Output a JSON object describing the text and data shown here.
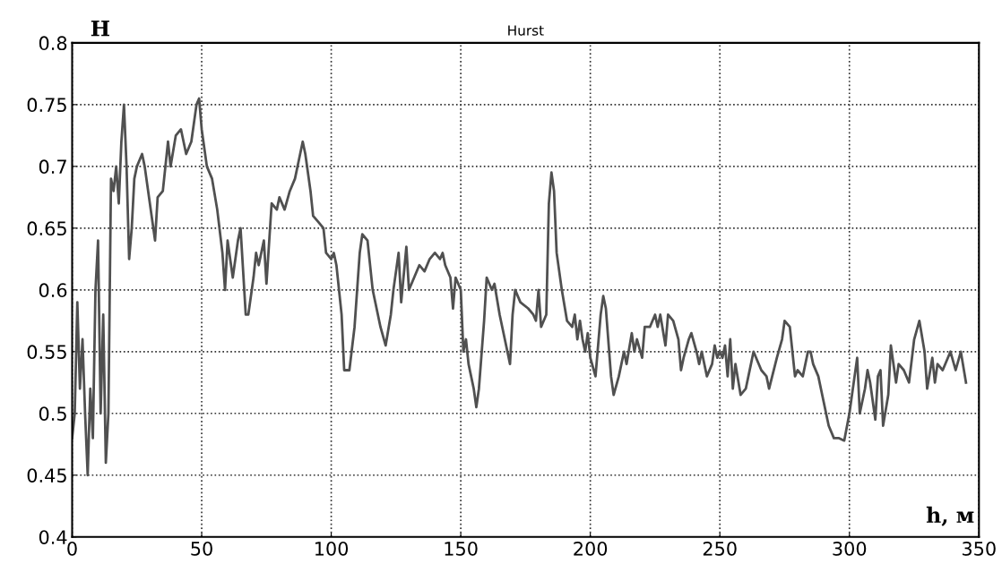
{
  "chart_data": {
    "type": "line",
    "title": "Hurst",
    "xlabel": "h, м",
    "ylabel": "H",
    "xlim": [
      0,
      350
    ],
    "ylim": [
      0.4,
      0.8
    ],
    "xticks": [
      0,
      50,
      100,
      150,
      200,
      250,
      300,
      350
    ],
    "yticks": [
      0.4,
      0.45,
      0.5,
      0.55,
      0.6,
      0.65,
      0.7,
      0.75,
      0.8
    ],
    "grid": true,
    "line_style": "solid",
    "marker": "none",
    "series": [
      {
        "color": "#505050",
        "x": [
          0,
          1,
          2,
          3,
          4,
          5,
          6,
          7,
          8,
          9,
          10,
          11,
          12,
          13,
          14,
          15,
          16,
          17,
          18,
          19,
          20,
          21,
          22,
          23,
          24,
          25,
          27,
          28,
          30,
          32,
          33,
          35,
          37,
          38,
          40,
          42,
          44,
          46,
          48,
          49,
          50,
          52,
          54,
          56,
          58,
          59,
          60,
          61,
          62,
          64,
          65,
          67,
          68,
          70,
          71,
          72,
          74,
          75,
          77,
          79,
          80,
          82,
          84,
          86,
          88,
          89,
          90,
          92,
          93,
          95,
          97,
          98,
          100,
          101,
          102,
          104,
          105,
          107,
          109,
          111,
          112,
          114,
          116,
          119,
          121,
          123,
          124,
          126,
          127,
          129,
          130,
          132,
          134,
          136,
          138,
          140,
          142,
          143,
          144,
          146,
          147,
          148,
          150,
          151,
          152,
          153,
          155,
          156,
          157,
          159,
          160,
          162,
          163,
          165,
          168,
          169,
          170,
          171,
          173,
          176,
          178,
          179,
          180,
          181,
          183,
          184,
          185,
          186,
          187,
          189,
          191,
          193,
          194,
          195,
          196,
          197,
          198,
          199,
          200,
          202,
          204,
          205,
          206,
          208,
          209,
          211,
          213,
          214,
          216,
          217,
          218,
          220,
          221,
          223,
          225,
          226,
          227,
          229,
          230,
          232,
          234,
          235,
          236,
          238,
          239,
          241,
          242,
          243,
          245,
          247,
          248,
          249,
          250,
          251,
          252,
          253,
          254,
          255,
          256,
          258,
          260,
          262,
          263,
          264,
          266,
          268,
          269,
          272,
          274,
          275,
          277,
          279,
          280,
          282,
          284,
          285,
          286,
          288,
          290,
          292,
          294,
          296,
          298,
          300,
          302,
          303,
          304,
          306,
          307,
          308,
          310,
          311,
          312,
          313,
          315,
          316,
          318,
          319,
          321,
          323,
          325,
          327,
          329,
          330,
          332,
          333,
          334,
          336,
          338,
          339,
          341,
          343,
          345
        ],
        "values": [
          0.48,
          0.5,
          0.59,
          0.52,
          0.56,
          0.5,
          0.45,
          0.52,
          0.48,
          0.6,
          0.64,
          0.5,
          0.58,
          0.46,
          0.5,
          0.69,
          0.68,
          0.7,
          0.67,
          0.72,
          0.75,
          0.7,
          0.625,
          0.65,
          0.69,
          0.7,
          0.71,
          0.7,
          0.67,
          0.64,
          0.675,
          0.68,
          0.72,
          0.7,
          0.725,
          0.73,
          0.71,
          0.72,
          0.75,
          0.755,
          0.73,
          0.7,
          0.69,
          0.665,
          0.63,
          0.6,
          0.64,
          0.625,
          0.61,
          0.64,
          0.65,
          0.58,
          0.58,
          0.61,
          0.63,
          0.62,
          0.64,
          0.605,
          0.67,
          0.665,
          0.675,
          0.665,
          0.68,
          0.69,
          0.71,
          0.72,
          0.71,
          0.68,
          0.66,
          0.655,
          0.65,
          0.63,
          0.625,
          0.63,
          0.62,
          0.58,
          0.535,
          0.535,
          0.57,
          0.63,
          0.645,
          0.64,
          0.6,
          0.57,
          0.555,
          0.58,
          0.6,
          0.63,
          0.59,
          0.635,
          0.6,
          0.61,
          0.62,
          0.615,
          0.625,
          0.63,
          0.625,
          0.63,
          0.62,
          0.61,
          0.585,
          0.61,
          0.6,
          0.55,
          0.56,
          0.54,
          0.52,
          0.505,
          0.52,
          0.575,
          0.61,
          0.6,
          0.605,
          0.58,
          0.55,
          0.54,
          0.58,
          0.6,
          0.59,
          0.585,
          0.58,
          0.575,
          0.6,
          0.57,
          0.58,
          0.67,
          0.695,
          0.68,
          0.63,
          0.6,
          0.575,
          0.57,
          0.58,
          0.56,
          0.575,
          0.56,
          0.55,
          0.565,
          0.545,
          0.53,
          0.58,
          0.595,
          0.585,
          0.53,
          0.515,
          0.53,
          0.55,
          0.54,
          0.565,
          0.55,
          0.56,
          0.545,
          0.57,
          0.57,
          0.58,
          0.57,
          0.58,
          0.555,
          0.58,
          0.575,
          0.56,
          0.535,
          0.545,
          0.56,
          0.565,
          0.55,
          0.54,
          0.55,
          0.53,
          0.54,
          0.555,
          0.545,
          0.55,
          0.545,
          0.555,
          0.53,
          0.56,
          0.52,
          0.54,
          0.515,
          0.52,
          0.54,
          0.55,
          0.545,
          0.535,
          0.53,
          0.52,
          0.545,
          0.56,
          0.575,
          0.57,
          0.53,
          0.535,
          0.53,
          0.55,
          0.55,
          0.54,
          0.53,
          0.51,
          0.49,
          0.48,
          0.48,
          0.478,
          0.5,
          0.53,
          0.545,
          0.5,
          0.52,
          0.535,
          0.525,
          0.495,
          0.53,
          0.535,
          0.49,
          0.515,
          0.555,
          0.525,
          0.54,
          0.535,
          0.525,
          0.56,
          0.575,
          0.55,
          0.52,
          0.545,
          0.525,
          0.54,
          0.535,
          0.545,
          0.55,
          0.535,
          0.55,
          0.525
        ]
      }
    ]
  }
}
